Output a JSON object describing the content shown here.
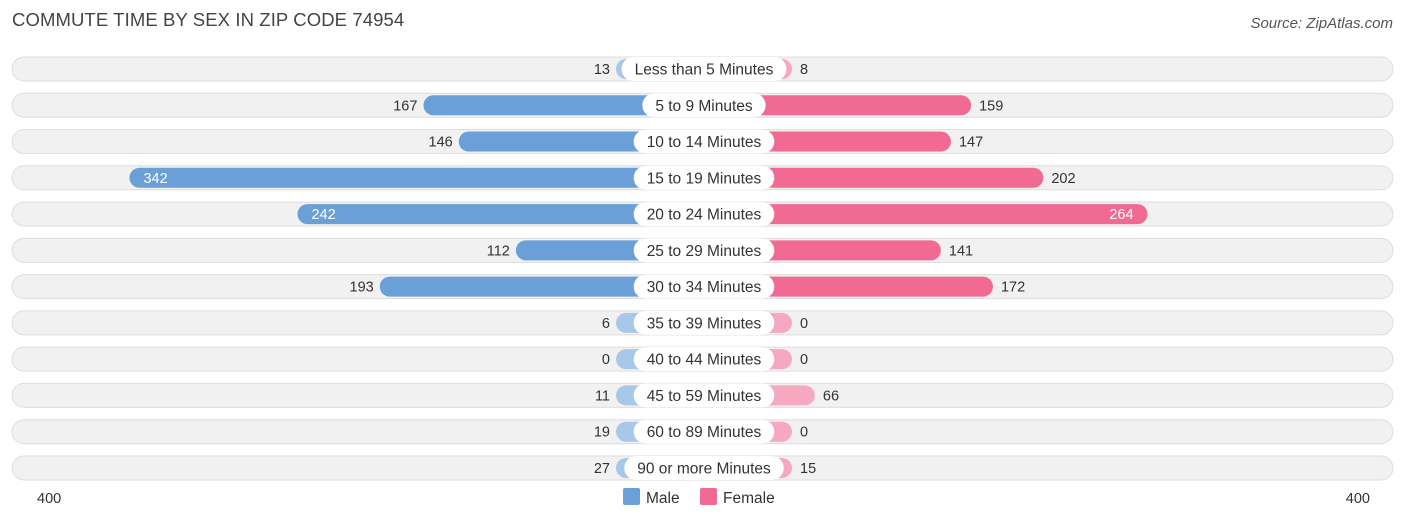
{
  "header": {
    "title": "COMMUTE TIME BY SEX IN ZIP CODE 74954",
    "source": "Source: ZipAtlas.com"
  },
  "colors": {
    "male": "#6a9fd8",
    "male_light": "#a8c8ea",
    "female": "#f06a93",
    "female_light": "#f6a8c0",
    "row_bg": "#f1f1f1",
    "row_border": "#dedede"
  },
  "chart_data": {
    "type": "bar",
    "orientation": "horizontal-diverging",
    "categories": [
      "Less than 5 Minutes",
      "5 to 9 Minutes",
      "10 to 14 Minutes",
      "15 to 19 Minutes",
      "20 to 24 Minutes",
      "25 to 29 Minutes",
      "30 to 34 Minutes",
      "35 to 39 Minutes",
      "40 to 44 Minutes",
      "45 to 59 Minutes",
      "60 to 89 Minutes",
      "90 or more Minutes"
    ],
    "series": [
      {
        "name": "Male",
        "values": [
          13,
          167,
          146,
          342,
          242,
          112,
          193,
          6,
          0,
          11,
          19,
          27
        ]
      },
      {
        "name": "Female",
        "values": [
          8,
          159,
          147,
          202,
          264,
          141,
          172,
          0,
          0,
          66,
          0,
          15
        ]
      }
    ],
    "xlim": [
      -400,
      400
    ],
    "axis_ticks": {
      "left": "400",
      "right": "400"
    },
    "legend_position": "bottom-center"
  }
}
